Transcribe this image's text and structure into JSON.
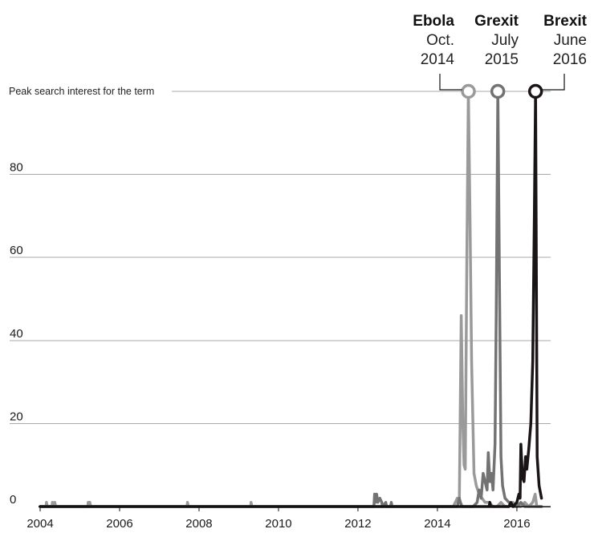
{
  "chart_data": {
    "type": "line",
    "title": "",
    "xlabel": "",
    "ylabel": "",
    "xlim": [
      2004.0,
      2016.85
    ],
    "ylim": [
      0,
      100
    ],
    "x_ticks": [
      2004,
      2006,
      2008,
      2010,
      2012,
      2014,
      2016
    ],
    "x_tick_labels": [
      "2004",
      "2006",
      "2008",
      "2010",
      "2012",
      "2014",
      "2016"
    ],
    "y_ticks": [
      0,
      20,
      40,
      60,
      80
    ],
    "y_tick_labels": [
      "0",
      "20",
      "40",
      "60",
      "80"
    ],
    "peak_line": {
      "value": 100,
      "label": "Peak search interest for the term"
    },
    "grid": true,
    "series": [
      {
        "name": "Ebola",
        "date_label": "Oct.",
        "year_label": "2014",
        "color": "#9a9a9a",
        "peak": {
          "x": 2014.78,
          "y": 100
        },
        "points": [
          [
            2004.0,
            0
          ],
          [
            2004.15,
            0
          ],
          [
            2004.16,
            1
          ],
          [
            2004.18,
            0
          ],
          [
            2004.3,
            0
          ],
          [
            2004.31,
            1
          ],
          [
            2004.33,
            0
          ],
          [
            2004.36,
            0
          ],
          [
            2004.37,
            1
          ],
          [
            2004.39,
            0
          ],
          [
            2005.2,
            0
          ],
          [
            2005.21,
            1
          ],
          [
            2005.25,
            1
          ],
          [
            2005.27,
            0
          ],
          [
            2007.7,
            0
          ],
          [
            2007.71,
            1
          ],
          [
            2007.73,
            0
          ],
          [
            2009.3,
            0
          ],
          [
            2009.31,
            1
          ],
          [
            2009.33,
            0
          ],
          [
            2014.0,
            0
          ],
          [
            2014.4,
            0
          ],
          [
            2014.5,
            2
          ],
          [
            2014.55,
            1
          ],
          [
            2014.6,
            46
          ],
          [
            2014.64,
            20
          ],
          [
            2014.67,
            10
          ],
          [
            2014.7,
            9
          ],
          [
            2014.74,
            60
          ],
          [
            2014.78,
            100
          ],
          [
            2014.82,
            70
          ],
          [
            2014.86,
            35
          ],
          [
            2014.92,
            8
          ],
          [
            2014.98,
            5
          ],
          [
            2015.05,
            3
          ],
          [
            2015.12,
            2
          ],
          [
            2015.2,
            1
          ],
          [
            2015.3,
            1
          ],
          [
            2015.4,
            0
          ],
          [
            2015.5,
            0
          ],
          [
            2015.6,
            1
          ],
          [
            2015.7,
            0
          ],
          [
            2015.8,
            0
          ],
          [
            2015.9,
            1
          ],
          [
            2016.0,
            0
          ],
          [
            2016.1,
            0
          ],
          [
            2016.2,
            1
          ],
          [
            2016.3,
            0
          ],
          [
            2016.4,
            1
          ],
          [
            2016.46,
            3
          ],
          [
            2016.5,
            0
          ],
          [
            2016.62,
            0
          ]
        ]
      },
      {
        "name": "Grexit",
        "date_label": "July",
        "year_label": "2015",
        "color": "#737373",
        "peak": {
          "x": 2015.52,
          "y": 100
        },
        "points": [
          [
            2004.0,
            0
          ],
          [
            2012.4,
            0
          ],
          [
            2012.42,
            3
          ],
          [
            2012.44,
            1
          ],
          [
            2012.47,
            3
          ],
          [
            2012.5,
            1
          ],
          [
            2012.55,
            2
          ],
          [
            2012.6,
            1
          ],
          [
            2012.62,
            0
          ],
          [
            2012.7,
            1
          ],
          [
            2012.72,
            0
          ],
          [
            2012.82,
            0
          ],
          [
            2012.84,
            1
          ],
          [
            2012.86,
            0
          ],
          [
            2014.5,
            0
          ],
          [
            2014.55,
            2
          ],
          [
            2014.58,
            1
          ],
          [
            2014.62,
            0
          ],
          [
            2014.75,
            0
          ],
          [
            2014.9,
            0
          ],
          [
            2015.0,
            1
          ],
          [
            2015.05,
            4
          ],
          [
            2015.1,
            2
          ],
          [
            2015.15,
            8
          ],
          [
            2015.2,
            6
          ],
          [
            2015.25,
            4
          ],
          [
            2015.28,
            13
          ],
          [
            2015.32,
            6
          ],
          [
            2015.36,
            8
          ],
          [
            2015.4,
            4
          ],
          [
            2015.45,
            15
          ],
          [
            2015.48,
            46
          ],
          [
            2015.52,
            100
          ],
          [
            2015.56,
            55
          ],
          [
            2015.6,
            12
          ],
          [
            2015.64,
            5
          ],
          [
            2015.7,
            2
          ],
          [
            2015.8,
            1
          ],
          [
            2015.9,
            0
          ],
          [
            2016.0,
            0
          ],
          [
            2016.1,
            1
          ],
          [
            2016.2,
            0
          ],
          [
            2016.4,
            0
          ],
          [
            2016.62,
            0
          ]
        ]
      },
      {
        "name": "Brexit",
        "date_label": "June",
        "year_label": "2016",
        "color": "#1a1416",
        "peak": {
          "x": 2016.47,
          "y": 100
        },
        "points": [
          [
            2004.0,
            0
          ],
          [
            2015.3,
            0
          ],
          [
            2015.32,
            1
          ],
          [
            2015.34,
            0
          ],
          [
            2015.8,
            0
          ],
          [
            2015.85,
            1
          ],
          [
            2015.9,
            0
          ],
          [
            2016.0,
            1
          ],
          [
            2016.05,
            3
          ],
          [
            2016.08,
            2
          ],
          [
            2016.1,
            15
          ],
          [
            2016.14,
            7
          ],
          [
            2016.18,
            6
          ],
          [
            2016.22,
            12
          ],
          [
            2016.25,
            9
          ],
          [
            2016.3,
            14
          ],
          [
            2016.35,
            20
          ],
          [
            2016.4,
            35
          ],
          [
            2016.44,
            70
          ],
          [
            2016.47,
            100
          ],
          [
            2016.51,
            12
          ],
          [
            2016.56,
            5
          ],
          [
            2016.62,
            2
          ]
        ]
      }
    ]
  }
}
